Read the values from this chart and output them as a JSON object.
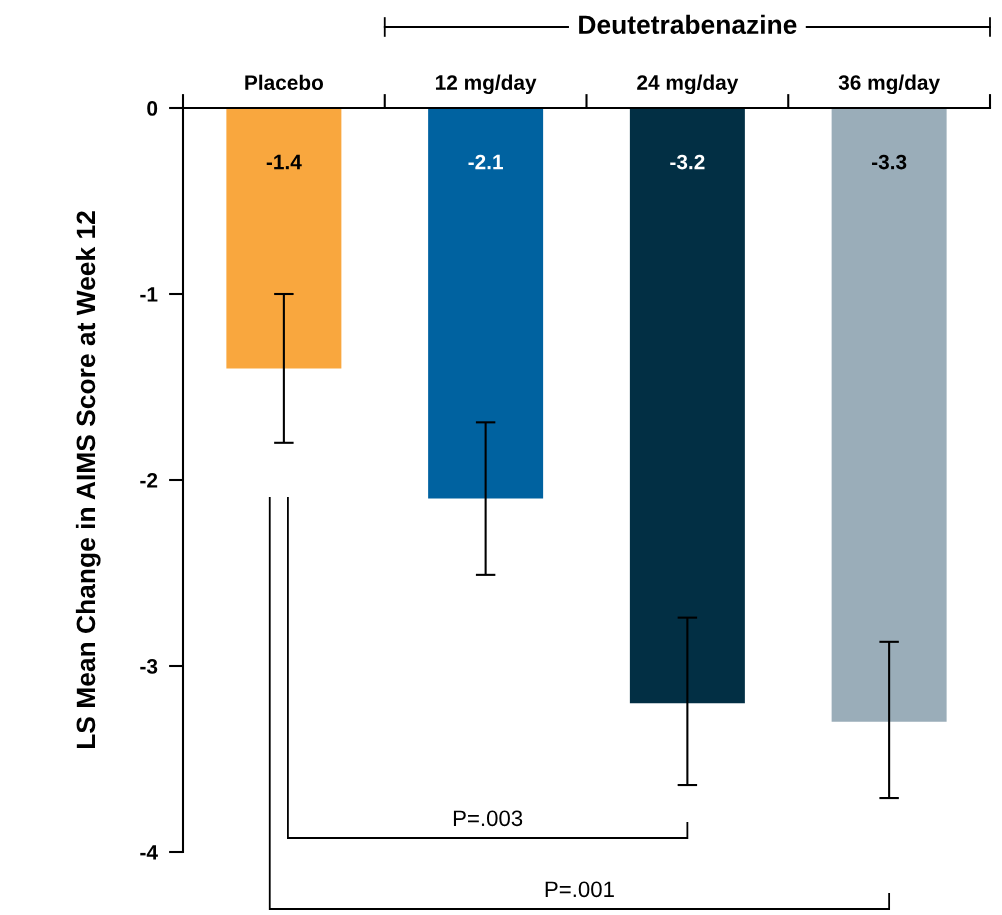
{
  "chart_data": {
    "type": "bar",
    "ylabel": "LS Mean Change in AIMS Score at Week 12",
    "categories": [
      "Placebo",
      "12 mg/day",
      "24 mg/day",
      "36 mg/day"
    ],
    "values": [
      -1.4,
      -2.1,
      -3.2,
      -3.3
    ],
    "colors": [
      "#f9a73e",
      "#0062a0",
      "#022f44",
      "#9aadb9"
    ],
    "errors": [
      [
        -1.8,
        -1.0
      ],
      [
        -2.51,
        -1.69
      ],
      [
        -3.64,
        -2.74
      ],
      [
        -3.71,
        -2.87
      ]
    ],
    "data_labels": true,
    "ylim": [
      -4,
      0
    ],
    "yticks": [
      0,
      -1,
      -2,
      -3,
      -4
    ],
    "grid": false,
    "annotations": [
      "Deutetrabenazine",
      "P=.003",
      "P=.001"
    ]
  }
}
